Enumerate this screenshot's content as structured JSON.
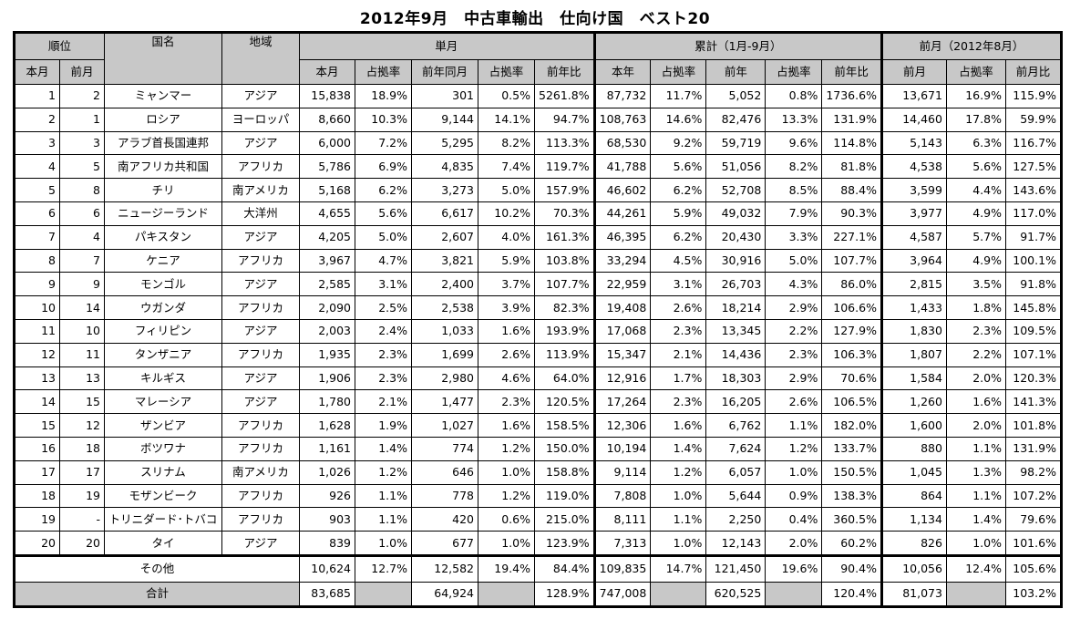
{
  "title": "2012年9月　中古車輸出　仕向け国　ベスト20",
  "header": {
    "rank": "順位",
    "country": "国名",
    "region": "地域",
    "monthly": "単月",
    "cumulative": "累計（1月-9月）",
    "prev_month": "前月（2012年8月）",
    "cur_rank": "本月",
    "prev_rank": "前月",
    "m_cur": "本月",
    "m_share": "占拠率",
    "m_prev_year": "前年同月",
    "m_share2": "占拠率",
    "m_yoy": "前年比",
    "c_cur": "本年",
    "c_share": "占拠率",
    "c_prev": "前年",
    "c_share2": "占拠率",
    "c_yoy": "前年比",
    "p_val": "前月",
    "p_share": "占拠率",
    "p_mom": "前月比"
  },
  "rows": [
    [
      "1",
      "2",
      "ミャンマー",
      "アジア",
      "15,838",
      "18.9%",
      "301",
      "0.5%",
      "5261.8%",
      "87,732",
      "11.7%",
      "5,052",
      "0.8%",
      "1736.6%",
      "13,671",
      "16.9%",
      "115.9%"
    ],
    [
      "2",
      "1",
      "ロシア",
      "ヨーロッパ",
      "8,660",
      "10.3%",
      "9,144",
      "14.1%",
      "94.7%",
      "108,763",
      "14.6%",
      "82,476",
      "13.3%",
      "131.9%",
      "14,460",
      "17.8%",
      "59.9%"
    ],
    [
      "3",
      "3",
      "アラブ首長国連邦",
      "アジア",
      "6,000",
      "7.2%",
      "5,295",
      "8.2%",
      "113.3%",
      "68,530",
      "9.2%",
      "59,719",
      "9.6%",
      "114.8%",
      "5,143",
      "6.3%",
      "116.7%"
    ],
    [
      "4",
      "5",
      "南アフリカ共和国",
      "アフリカ",
      "5,786",
      "6.9%",
      "4,835",
      "7.4%",
      "119.7%",
      "41,788",
      "5.6%",
      "51,056",
      "8.2%",
      "81.8%",
      "4,538",
      "5.6%",
      "127.5%"
    ],
    [
      "5",
      "8",
      "チリ",
      "南アメリカ",
      "5,168",
      "6.2%",
      "3,273",
      "5.0%",
      "157.9%",
      "46,602",
      "6.2%",
      "52,708",
      "8.5%",
      "88.4%",
      "3,599",
      "4.4%",
      "143.6%"
    ],
    [
      "6",
      "6",
      "ニュージーランド",
      "大洋州",
      "4,655",
      "5.6%",
      "6,617",
      "10.2%",
      "70.3%",
      "44,261",
      "5.9%",
      "49,032",
      "7.9%",
      "90.3%",
      "3,977",
      "4.9%",
      "117.0%"
    ],
    [
      "7",
      "4",
      "パキスタン",
      "アジア",
      "4,205",
      "5.0%",
      "2,607",
      "4.0%",
      "161.3%",
      "46,395",
      "6.2%",
      "20,430",
      "3.3%",
      "227.1%",
      "4,587",
      "5.7%",
      "91.7%"
    ],
    [
      "8",
      "7",
      "ケニア",
      "アフリカ",
      "3,967",
      "4.7%",
      "3,821",
      "5.9%",
      "103.8%",
      "33,294",
      "4.5%",
      "30,916",
      "5.0%",
      "107.7%",
      "3,964",
      "4.9%",
      "100.1%"
    ],
    [
      "9",
      "9",
      "モンゴル",
      "アジア",
      "2,585",
      "3.1%",
      "2,400",
      "3.7%",
      "107.7%",
      "22,959",
      "3.1%",
      "26,703",
      "4.3%",
      "86.0%",
      "2,815",
      "3.5%",
      "91.8%"
    ],
    [
      "10",
      "14",
      "ウガンダ",
      "アフリカ",
      "2,090",
      "2.5%",
      "2,538",
      "3.9%",
      "82.3%",
      "19,408",
      "2.6%",
      "18,214",
      "2.9%",
      "106.6%",
      "1,433",
      "1.8%",
      "145.8%"
    ],
    [
      "11",
      "10",
      "フィリピン",
      "アジア",
      "2,003",
      "2.4%",
      "1,033",
      "1.6%",
      "193.9%",
      "17,068",
      "2.3%",
      "13,345",
      "2.2%",
      "127.9%",
      "1,830",
      "2.3%",
      "109.5%"
    ],
    [
      "12",
      "11",
      "タンザニア",
      "アフリカ",
      "1,935",
      "2.3%",
      "1,699",
      "2.6%",
      "113.9%",
      "15,347",
      "2.1%",
      "14,436",
      "2.3%",
      "106.3%",
      "1,807",
      "2.2%",
      "107.1%"
    ],
    [
      "13",
      "13",
      "キルギス",
      "アジア",
      "1,906",
      "2.3%",
      "2,980",
      "4.6%",
      "64.0%",
      "12,916",
      "1.7%",
      "18,303",
      "2.9%",
      "70.6%",
      "1,584",
      "2.0%",
      "120.3%"
    ],
    [
      "14",
      "15",
      "マレーシア",
      "アジア",
      "1,780",
      "2.1%",
      "1,477",
      "2.3%",
      "120.5%",
      "17,264",
      "2.3%",
      "16,205",
      "2.6%",
      "106.5%",
      "1,260",
      "1.6%",
      "141.3%"
    ],
    [
      "15",
      "12",
      "ザンビア",
      "アフリカ",
      "1,628",
      "1.9%",
      "1,027",
      "1.6%",
      "158.5%",
      "12,306",
      "1.6%",
      "6,762",
      "1.1%",
      "182.0%",
      "1,600",
      "2.0%",
      "101.8%"
    ],
    [
      "16",
      "18",
      "ボツワナ",
      "アフリカ",
      "1,161",
      "1.4%",
      "774",
      "1.2%",
      "150.0%",
      "10,194",
      "1.4%",
      "7,624",
      "1.2%",
      "133.7%",
      "880",
      "1.1%",
      "131.9%"
    ],
    [
      "17",
      "17",
      "スリナム",
      "南アメリカ",
      "1,026",
      "1.2%",
      "646",
      "1.0%",
      "158.8%",
      "9,114",
      "1.2%",
      "6,057",
      "1.0%",
      "150.5%",
      "1,045",
      "1.3%",
      "98.2%"
    ],
    [
      "18",
      "19",
      "モザンビーク",
      "アフリカ",
      "926",
      "1.1%",
      "778",
      "1.2%",
      "119.0%",
      "7,808",
      "1.0%",
      "5,644",
      "0.9%",
      "138.3%",
      "864",
      "1.1%",
      "107.2%"
    ],
    [
      "19",
      "-",
      "トリニダード･トバコ",
      "アフリカ",
      "903",
      "1.1%",
      "420",
      "0.6%",
      "215.0%",
      "8,111",
      "1.1%",
      "2,250",
      "0.4%",
      "360.5%",
      "1,134",
      "1.4%",
      "79.6%"
    ],
    [
      "20",
      "20",
      "タイ",
      "アジア",
      "839",
      "1.0%",
      "677",
      "1.0%",
      "123.9%",
      "7,313",
      "1.0%",
      "12,143",
      "2.0%",
      "60.2%",
      "826",
      "1.0%",
      "101.6%"
    ]
  ],
  "other": {
    "label": "その他",
    "values": [
      "10,624",
      "12.7%",
      "12,582",
      "19.4%",
      "84.4%",
      "109,835",
      "14.7%",
      "121,450",
      "19.6%",
      "90.4%",
      "10,056",
      "12.4%",
      "105.6%"
    ]
  },
  "total": {
    "label": "合計",
    "values": [
      "83,685",
      "",
      "64,924",
      "",
      "128.9%",
      "747,008",
      "",
      "620,525",
      "",
      "120.4%",
      "81,073",
      "",
      "103.2%"
    ]
  }
}
